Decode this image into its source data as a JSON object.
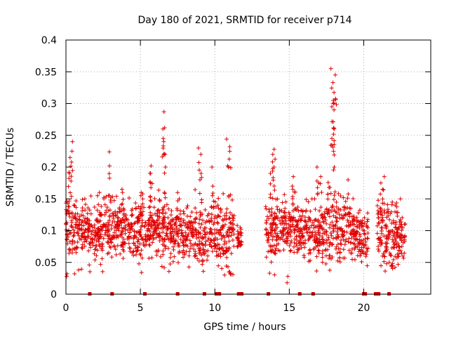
{
  "chart_data": {
    "type": "scatter",
    "title": "Day 180 of 2021, SRMTID for receiver p714",
    "xlabel": "GPS time / hours",
    "ylabel": "SRMTID / TECUs",
    "xlim": [
      0,
      24.5
    ],
    "ylim": [
      0,
      0.4
    ],
    "xticks": [
      0,
      5,
      10,
      15,
      20
    ],
    "yticks": [
      0,
      0.05,
      0.1,
      0.15,
      0.2,
      0.25,
      0.3,
      0.35,
      0.4
    ],
    "grid": true,
    "marker": "plus",
    "series_color": "#e00000",
    "gap_markers_hours": [
      1.6,
      3.1,
      5.3,
      7.5,
      9.3,
      10.1,
      10.3,
      11.6,
      11.8,
      13.6,
      15.7,
      16.6,
      20.0,
      20.1,
      20.8,
      21.0,
      21.7
    ],
    "clusters": [
      {
        "start": 0.0,
        "end": 0.7,
        "mean": 0.105,
        "spread": 0.032,
        "peaks": [
          0.24,
          0.225,
          0.215,
          0.19
        ]
      },
      {
        "start": 0.7,
        "end": 1.6,
        "mean": 0.1,
        "spread": 0.027,
        "peaks": [
          0.15
        ]
      },
      {
        "start": 1.6,
        "end": 2.6,
        "mean": 0.095,
        "spread": 0.03,
        "peaks": [
          0.16
        ]
      },
      {
        "start": 2.6,
        "end": 3.3,
        "mean": 0.1,
        "spread": 0.03,
        "peaks": [
          0.224,
          0.202
        ]
      },
      {
        "start": 3.3,
        "end": 4.5,
        "mean": 0.105,
        "spread": 0.026,
        "peaks": [
          0.165,
          0.16
        ]
      },
      {
        "start": 4.5,
        "end": 5.3,
        "mean": 0.1,
        "spread": 0.03,
        "peaks": [
          0.16,
          0.155
        ]
      },
      {
        "start": 5.3,
        "end": 6.2,
        "mean": 0.1,
        "spread": 0.026,
        "peaks": [
          0.202,
          0.19,
          0.175
        ]
      },
      {
        "start": 6.2,
        "end": 7.0,
        "mean": 0.1,
        "spread": 0.035,
        "peaks": [
          0.287,
          0.26,
          0.245,
          0.22,
          0.2
        ]
      },
      {
        "start": 7.0,
        "end": 8.6,
        "mean": 0.095,
        "spread": 0.025,
        "peaks": [
          0.16,
          0.15
        ]
      },
      {
        "start": 8.6,
        "end": 9.5,
        "mean": 0.09,
        "spread": 0.032,
        "peaks": [
          0.23,
          0.22,
          0.19,
          0.18
        ]
      },
      {
        "start": 9.5,
        "end": 10.4,
        "mean": 0.1,
        "spread": 0.03,
        "peaks": [
          0.2,
          0.17
        ]
      },
      {
        "start": 10.4,
        "end": 11.3,
        "mean": 0.09,
        "spread": 0.035,
        "peaks": [
          0.244,
          0.232,
          0.225,
          0.2
        ]
      },
      {
        "start": 11.5,
        "end": 11.8,
        "mean": 0.085,
        "spread": 0.015,
        "peaks": []
      },
      {
        "start": 13.4,
        "end": 14.5,
        "mean": 0.1,
        "spread": 0.032,
        "peaks": [
          0.228,
          0.22,
          0.2,
          0.19
        ]
      },
      {
        "start": 14.5,
        "end": 16.5,
        "mean": 0.1,
        "spread": 0.027,
        "peaks": [
          0.185,
          0.17,
          0.165
        ]
      },
      {
        "start": 16.5,
        "end": 17.5,
        "mean": 0.095,
        "spread": 0.03,
        "peaks": [
          0.2,
          0.185,
          0.175
        ]
      },
      {
        "start": 17.5,
        "end": 18.4,
        "mean": 0.11,
        "spread": 0.04,
        "peaks": [
          0.355,
          0.345,
          0.333,
          0.3,
          0.295,
          0.29,
          0.26,
          0.245,
          0.225
        ]
      },
      {
        "start": 18.4,
        "end": 19.4,
        "mean": 0.105,
        "spread": 0.03,
        "peaks": [
          0.18
        ]
      },
      {
        "start": 19.4,
        "end": 20.3,
        "mean": 0.09,
        "spread": 0.025,
        "peaks": [
          0.115
        ]
      },
      {
        "start": 20.9,
        "end": 21.7,
        "mean": 0.1,
        "spread": 0.035,
        "peaks": [
          0.185,
          0.175,
          0.165
        ]
      },
      {
        "start": 21.7,
        "end": 22.8,
        "mean": 0.09,
        "spread": 0.03,
        "peaks": [
          0.15,
          0.14
        ]
      }
    ]
  }
}
